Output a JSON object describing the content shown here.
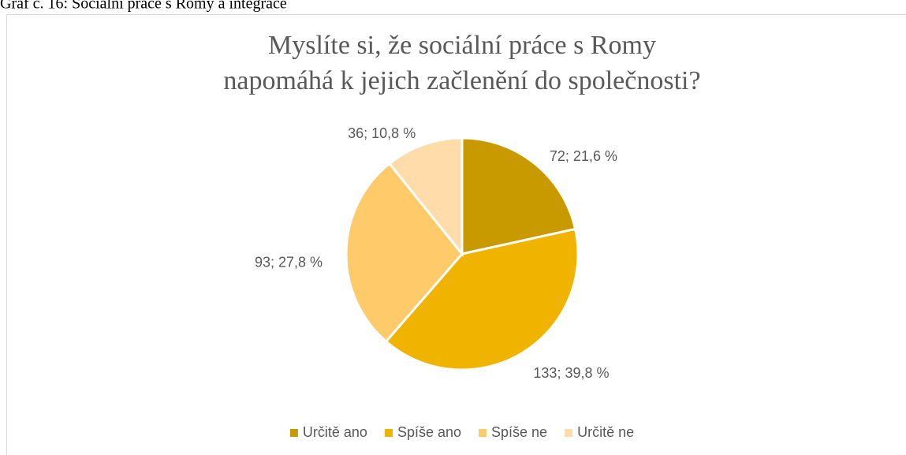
{
  "caption": "Graf č. 16: Sociální práce s Romy a integrace",
  "chart_data": {
    "type": "pie",
    "title": "Myslíte si, že sociální práce s Romy napomáhá k jejich začlenění do společnosti?",
    "categories": [
      "Určitě ano",
      "Spíše ano",
      "Spíše ne",
      "Určitě ne"
    ],
    "values": [
      72,
      133,
      93,
      36
    ],
    "value_labels": [
      "72; 21,6 %",
      "133; 39,8 %",
      "93; 27,8 %",
      "36; 10,8 %"
    ],
    "colors": [
      "#c89a00",
      "#f0b400",
      "#ffca6a",
      "#ffdcaa"
    ],
    "legend": "bottom"
  }
}
